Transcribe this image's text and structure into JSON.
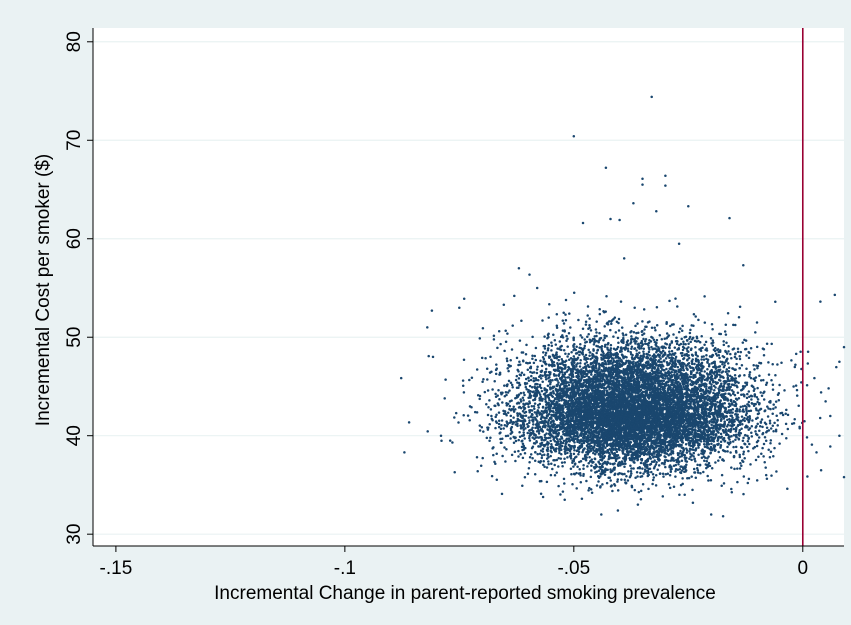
{
  "chart_data": {
    "type": "scatter",
    "title": "",
    "xlabel": "Incremental Change in parent-reported smoking prevalence",
    "ylabel": "Incremental Cost per smoker ($)",
    "xlim": [
      -0.155,
      0.009
    ],
    "ylim": [
      28.8,
      81.4
    ],
    "x_ticks": [
      -0.15,
      -0.1,
      -0.05,
      0
    ],
    "x_tick_labels": [
      "-.15",
      "-.1",
      "-.05",
      "0"
    ],
    "y_ticks": [
      30,
      40,
      50,
      60,
      70,
      80
    ],
    "y_tick_labels": [
      "30",
      "40",
      "50",
      "60",
      "70",
      "80"
    ],
    "grid": "horizontal",
    "legend": "none",
    "reference_line": {
      "axis": "x",
      "value": 0,
      "color": "#990033"
    },
    "colors": {
      "outer_background": "#eaf2f3",
      "plot_background": "#ffffff",
      "marker": "#1a476f",
      "grid": "#eaf2f3"
    },
    "series": [
      {
        "cloud_center": [
          -0.037,
          42.5
        ],
        "cloud_spread": [
          0.0125,
          3.6
        ],
        "point_count": 10000,
        "points": [
          [
            -0.087,
            38.3
          ],
          [
            -0.082,
            51.0
          ],
          [
            -0.081,
            52.7
          ],
          [
            -0.079,
            40.0
          ],
          [
            -0.078,
            45.7
          ],
          [
            -0.077,
            39.5
          ],
          [
            -0.075,
            53.0
          ],
          [
            -0.074,
            44.4
          ],
          [
            -0.071,
            36.4
          ],
          [
            -0.07,
            47.9
          ],
          [
            -0.068,
            42.0
          ],
          [
            -0.066,
            49.3
          ],
          [
            -0.063,
            54.2
          ],
          [
            -0.062,
            57.0
          ],
          [
            -0.058,
            55.0
          ],
          [
            -0.055,
            36.0
          ],
          [
            -0.052,
            33.5
          ],
          [
            -0.05,
            70.4
          ],
          [
            -0.048,
            61.6
          ],
          [
            -0.046,
            34.2
          ],
          [
            -0.044,
            32.0
          ],
          [
            -0.043,
            67.2
          ],
          [
            -0.042,
            62.0
          ],
          [
            -0.04,
            61.9
          ],
          [
            -0.039,
            58.0
          ],
          [
            -0.037,
            63.6
          ],
          [
            -0.036,
            33.0
          ],
          [
            -0.035,
            66.1
          ],
          [
            -0.035,
            65.5
          ],
          [
            -0.033,
            74.4
          ],
          [
            -0.032,
            62.8
          ],
          [
            -0.03,
            66.4
          ],
          [
            -0.03,
            65.4
          ],
          [
            -0.027,
            59.5
          ],
          [
            -0.025,
            63.3
          ],
          [
            -0.024,
            33.2
          ],
          [
            -0.02,
            32.0
          ],
          [
            -0.016,
            62.1
          ],
          [
            -0.013,
            57.3
          ],
          [
            -0.012,
            35.2
          ],
          [
            -0.01,
            51.5
          ],
          [
            -0.008,
            36.0
          ],
          [
            -0.006,
            53.6
          ],
          [
            -0.004,
            44.6
          ],
          [
            -0.002,
            45.0
          ],
          [
            0.002,
            39.1
          ],
          [
            0.003,
            38.3
          ],
          [
            0.004,
            36.5
          ],
          [
            0.004,
            44.4
          ],
          [
            0.006,
            42.0
          ],
          [
            0.006,
            38.9
          ],
          [
            0.007,
            54.3
          ],
          [
            0.008,
            47.5
          ],
          [
            0.008,
            40.0
          ],
          [
            0.009,
            49.0
          ],
          [
            0.009,
            35.8
          ],
          [
            0.01,
            50.7
          ],
          [
            0.011,
            47.2
          ],
          [
            0.012,
            46.3
          ],
          [
            0.013,
            35.8
          ]
        ]
      }
    ]
  }
}
